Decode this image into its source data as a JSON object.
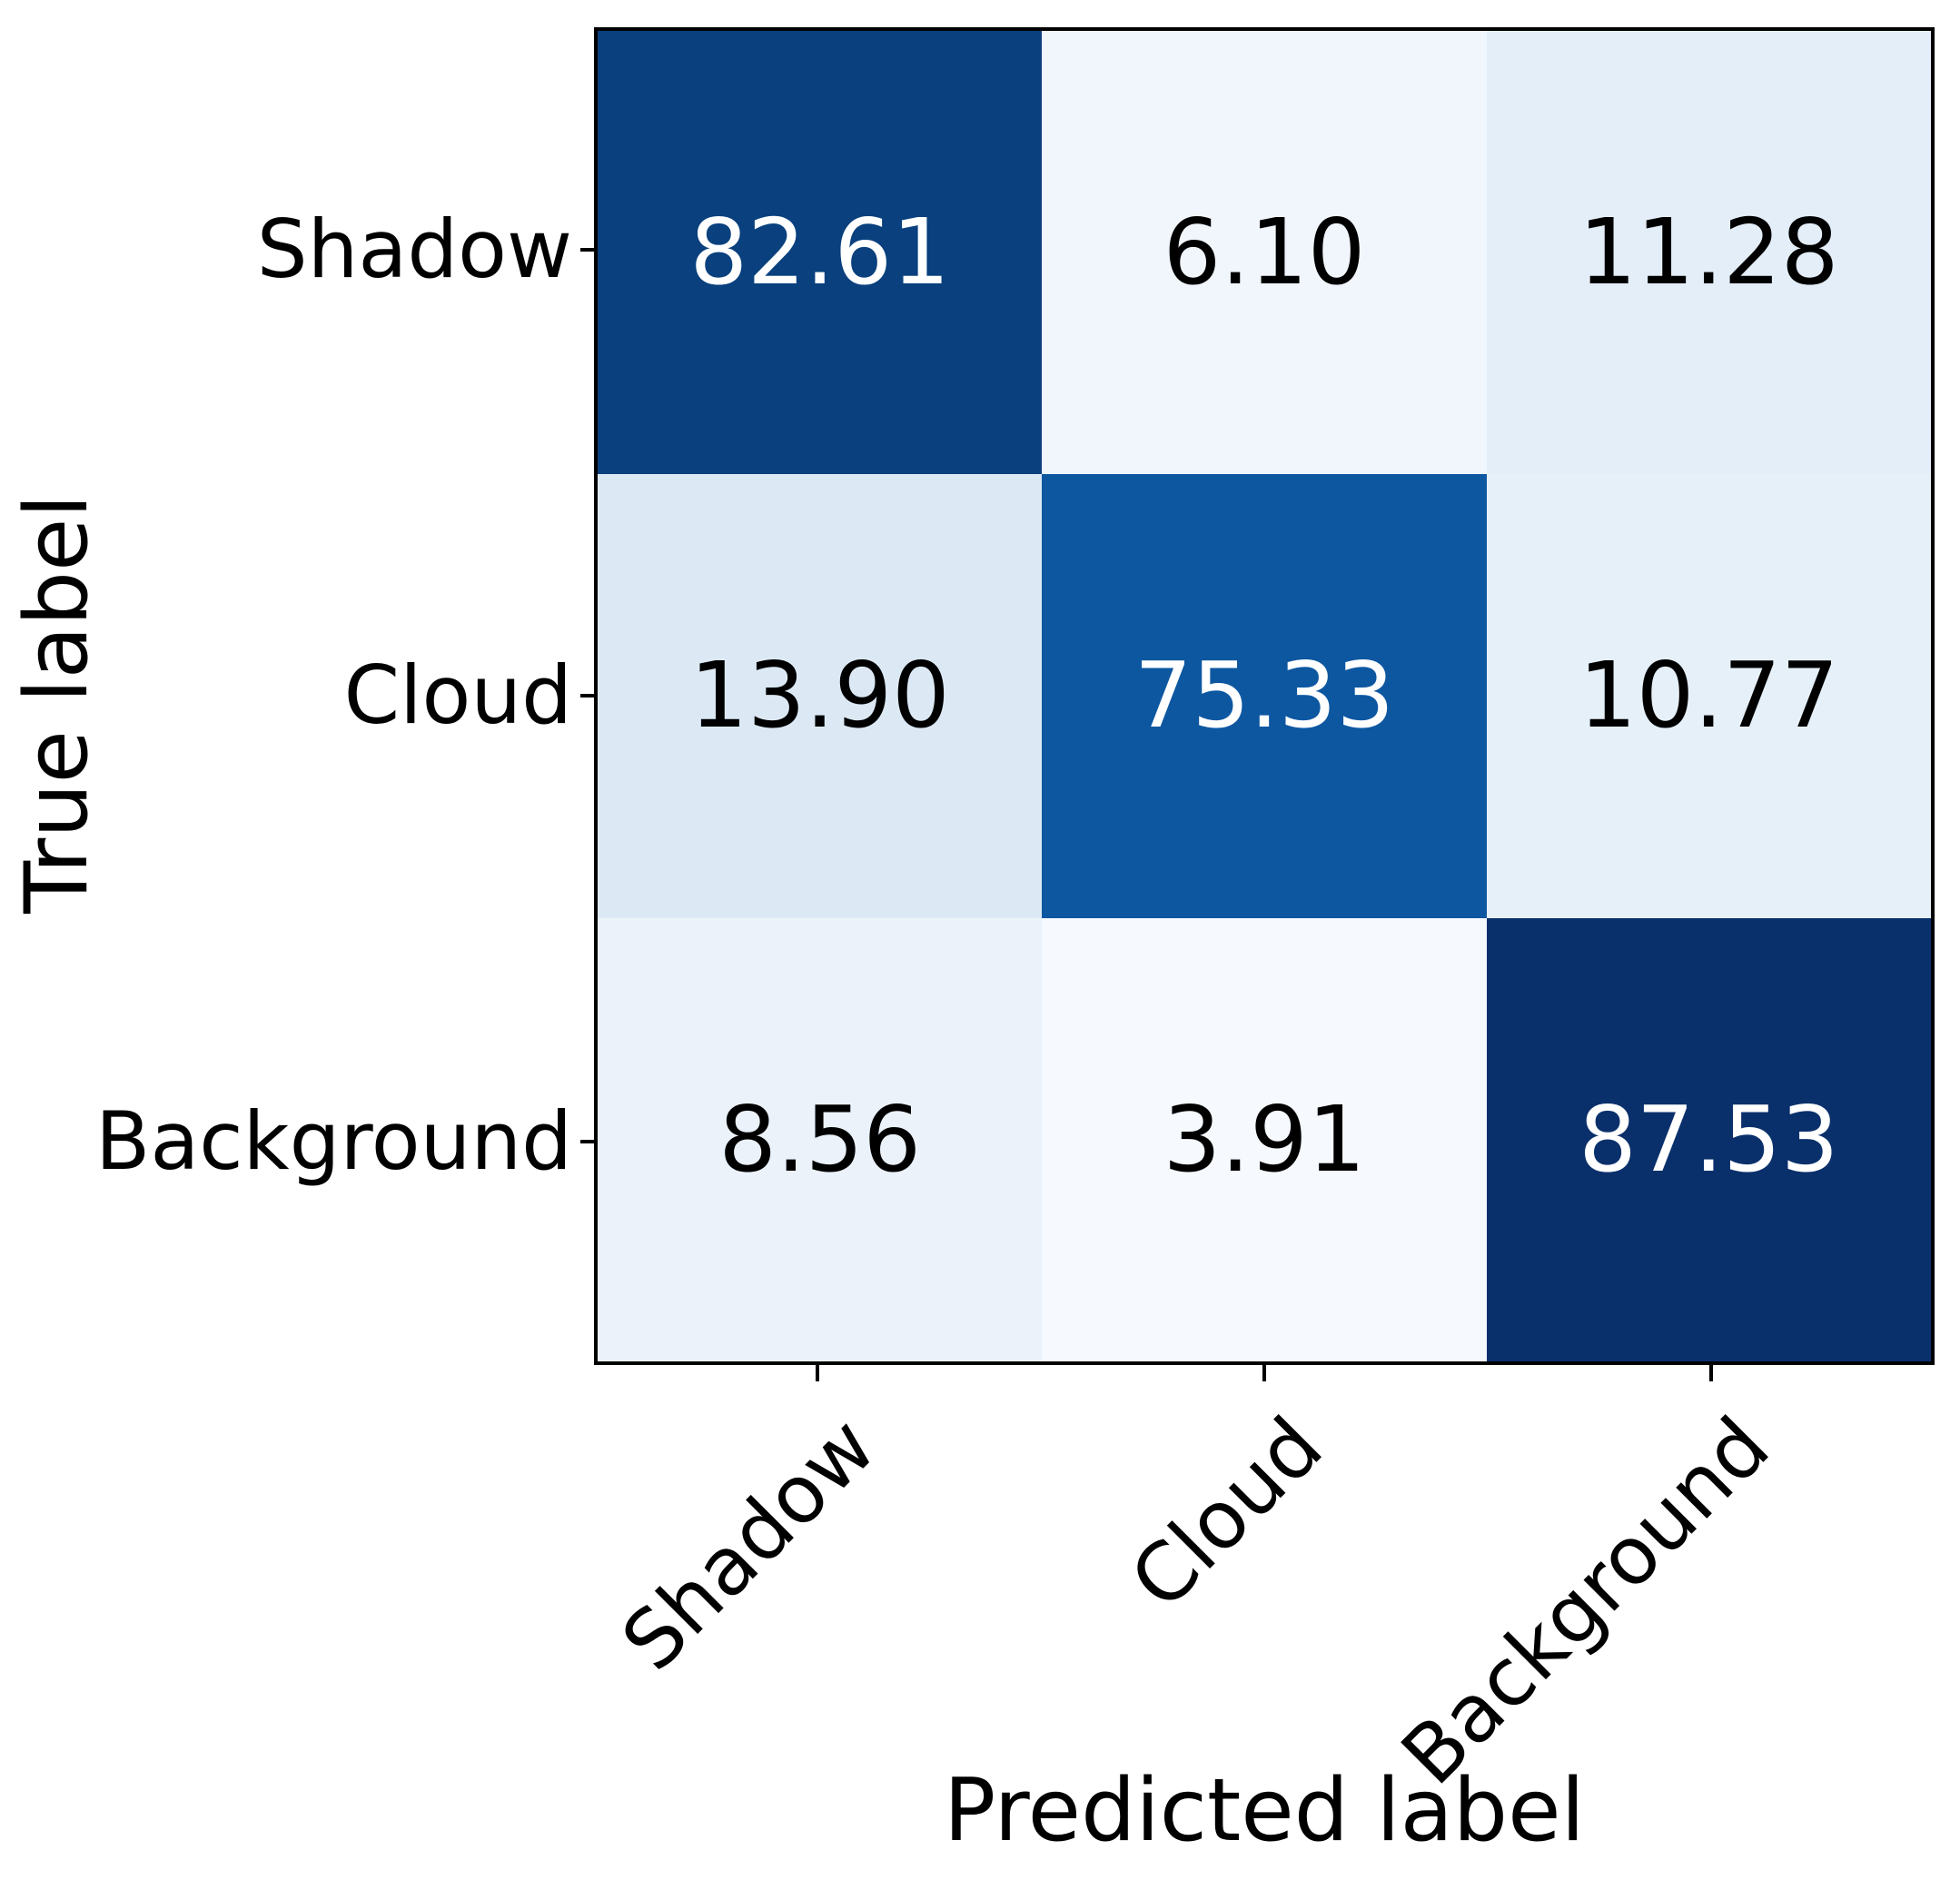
{
  "chart_data": {
    "type": "heatmap",
    "title": "",
    "xlabel": "Predicted label",
    "ylabel": "True label",
    "x_categories": [
      "Shadow",
      "Cloud",
      "Background"
    ],
    "y_categories": [
      "Shadow",
      "Cloud",
      "Background"
    ],
    "matrix": [
      [
        82.61,
        6.1,
        11.28
      ],
      [
        13.9,
        75.33,
        10.77
      ],
      [
        8.56,
        3.91,
        87.53
      ]
    ],
    "matrix_display": [
      [
        "82.61",
        "6.10",
        "11.28"
      ],
      [
        "13.90",
        "75.33",
        "10.77"
      ],
      [
        "8.56",
        "3.91",
        "87.53"
      ]
    ],
    "cell_colors": [
      [
        "#09407d",
        "#f1f6fc",
        "#e4eef8"
      ],
      [
        "#dce9f5",
        "#0d57a1",
        "#e6f0f9"
      ],
      [
        "#ebf2fa",
        "#f6f9fe",
        "#0a306b"
      ]
    ],
    "text_colors": [
      [
        "#ffffff",
        "#000000",
        "#000000"
      ],
      [
        "#000000",
        "#ffffff",
        "#000000"
      ],
      [
        "#000000",
        "#000000",
        "#ffffff"
      ]
    ],
    "colormap": "Blues",
    "value_range": [
      3.91,
      87.53
    ],
    "grid": "off",
    "legend": "none",
    "spine_color": "#000000",
    "tick_color": "#000000"
  }
}
